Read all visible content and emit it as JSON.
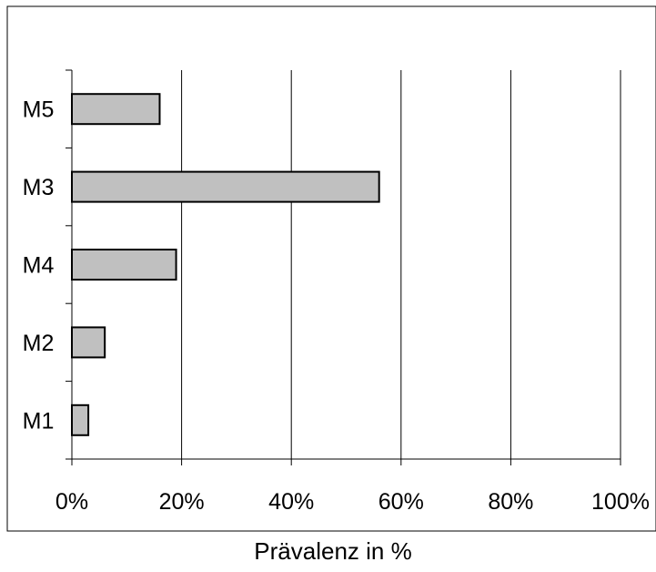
{
  "chart_data": {
    "type": "bar",
    "orientation": "horizontal",
    "categories": [
      "M1",
      "M2",
      "M4",
      "M3",
      "M5"
    ],
    "values": [
      3,
      6,
      19,
      56,
      16
    ],
    "title": "",
    "xlabel": "Prävalenz in %",
    "ylabel": "",
    "xlim": [
      0,
      100
    ],
    "xticks": [
      0,
      20,
      40,
      60,
      80,
      100
    ],
    "xtick_labels": [
      "0%",
      "20%",
      "40%",
      "60%",
      "80%",
      "100%"
    ],
    "grid": "vertical",
    "legend": "none",
    "bar_color": "#c0c0c0",
    "bar_edge_color": "#000000"
  }
}
